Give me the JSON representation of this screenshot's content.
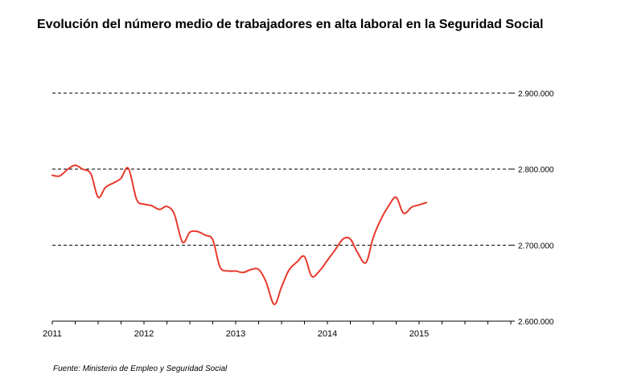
{
  "title": "Evolución del número medio de trabajadores en alta laboral en la Seguridad Social",
  "source": "Fuente: Ministerio de Empleo y Seguridad Social",
  "chart_data": {
    "type": "line",
    "title": "Evolución del número medio de trabajadores en alta laboral en la Seguridad Social",
    "xlabel": "",
    "ylabel": "",
    "xlim": [
      2011,
      2016
    ],
    "ylim": [
      2600000,
      2900000
    ],
    "x_ticks": [
      2011,
      2012,
      2013,
      2014,
      2015
    ],
    "x_tick_labels": [
      "2011",
      "2012",
      "2013",
      "2014",
      "2015"
    ],
    "y_ticks": [
      2600000,
      2700000,
      2800000,
      2900000
    ],
    "y_tick_labels": [
      "2.600.000",
      "2.700.000",
      "2.800.000",
      "2.900.000"
    ],
    "y_axis_position": "right",
    "grid": "horizontal dashed",
    "legend": "none",
    "series_color": "#e8392c",
    "series": [
      {
        "x": [
          2011.0,
          2011.08,
          2011.17,
          2011.25,
          2011.33,
          2011.42,
          2011.5,
          2011.58,
          2011.67,
          2011.75,
          2011.83,
          2011.92,
          2012.0,
          2012.08,
          2012.17,
          2012.25,
          2012.33,
          2012.42,
          2012.5,
          2012.58,
          2012.67,
          2012.75,
          2012.83,
          2012.92,
          2013.0,
          2013.08,
          2013.17,
          2013.25,
          2013.33,
          2013.42,
          2013.5,
          2013.58,
          2013.67,
          2013.75,
          2013.83,
          2013.92,
          2014.0,
          2014.08,
          2014.17,
          2014.25,
          2014.33,
          2014.42,
          2014.5,
          2014.58,
          2014.67,
          2014.75,
          2014.83,
          2014.92,
          2015.0,
          2015.08
        ],
        "y": [
          2792000,
          2791000,
          2800000,
          2805000,
          2800000,
          2794000,
          2763000,
          2776000,
          2782000,
          2788000,
          2801000,
          2760000,
          2754000,
          2752000,
          2747000,
          2751000,
          2741000,
          2704000,
          2717000,
          2718000,
          2713000,
          2707000,
          2671000,
          2666000,
          2666000,
          2664000,
          2668000,
          2668000,
          2652000,
          2622000,
          2645000,
          2667000,
          2678000,
          2685000,
          2659000,
          2667000,
          2680000,
          2693000,
          2708000,
          2708000,
          2690000,
          2677000,
          2710000,
          2733000,
          2752000,
          2763000,
          2742000,
          2750000,
          2753000,
          2756000
        ]
      }
    ]
  }
}
